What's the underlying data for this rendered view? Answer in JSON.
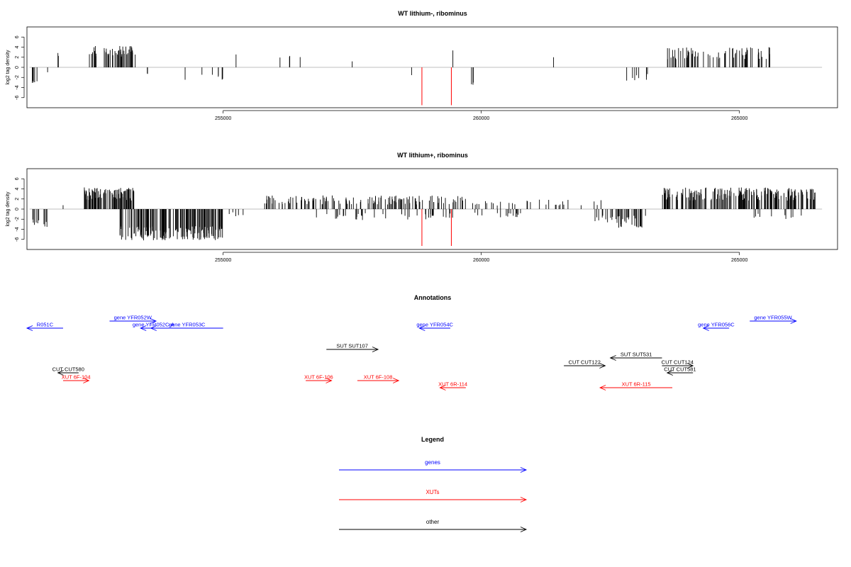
{
  "chart_data": {
    "type": "genome_track",
    "palette": {
      "genes": "#0000ff",
      "XUTs": "#ff0000",
      "other": "#000000",
      "baseline": "#aaaaaa",
      "highlight": "#ff0000"
    },
    "xlim": [
      251200,
      266900
    ],
    "ylim": [
      -8,
      8
    ],
    "panels": [
      {
        "title": "WT lithium-, ribominus",
        "ylabel": "log2 tag density",
        "yticks": [
          -6,
          -4,
          -2,
          0,
          2,
          4,
          6
        ],
        "xticks": [
          255000,
          260000,
          265000
        ],
        "xtick_labels": [
          "255000",
          "260000",
          "265000"
        ],
        "highlight_lines": [
          {
            "x": 258850,
            "y": -7.5
          },
          {
            "x": 259420,
            "y": -7.5
          }
        ],
        "pos_clusters": [
          {
            "x0": 251800,
            "x1": 251830,
            "mean": 2.5,
            "var": 0.4,
            "n": 2
          },
          {
            "x0": 252400,
            "x1": 253300,
            "mean": 3.2,
            "var": 1.2,
            "n": 50
          },
          {
            "x0": 255250,
            "x1": 255260,
            "mean": 2.8,
            "var": 0.3,
            "n": 1
          },
          {
            "x0": 256100,
            "x1": 256900,
            "mean": 1.8,
            "var": 0.6,
            "n": 5
          },
          {
            "x0": 257500,
            "x1": 257520,
            "mean": 1.1,
            "var": 0.1,
            "n": 1
          },
          {
            "x0": 259450,
            "x1": 259470,
            "mean": 3.5,
            "var": 0.2,
            "n": 1
          },
          {
            "x0": 261400,
            "x1": 261420,
            "mean": 2.0,
            "var": 0.1,
            "n": 1
          },
          {
            "x0": 263600,
            "x1": 265600,
            "mean": 2.8,
            "var": 1.2,
            "n": 70
          }
        ],
        "neg_clusters": [
          {
            "x0": 251250,
            "x1": 251400,
            "mean": -3.0,
            "var": 0.4,
            "n": 5
          },
          {
            "x0": 251600,
            "x1": 251650,
            "mean": -1.0,
            "var": 0.2,
            "n": 1
          },
          {
            "x0": 253500,
            "x1": 253550,
            "mean": -1.5,
            "var": 0.6,
            "n": 2
          },
          {
            "x0": 254200,
            "x1": 255000,
            "mean": -2.2,
            "var": 0.8,
            "n": 7
          },
          {
            "x0": 258650,
            "x1": 258660,
            "mean": -1.6,
            "var": 0.1,
            "n": 1
          },
          {
            "x0": 259800,
            "x1": 259850,
            "mean": -3.2,
            "var": 0.3,
            "n": 3
          },
          {
            "x0": 262500,
            "x1": 263300,
            "mean": -2.0,
            "var": 1.0,
            "n": 8
          }
        ]
      },
      {
        "title": "WT lithium+, ribominus",
        "ylabel": "log2 tag density",
        "yticks": [
          -6,
          -4,
          -2,
          0,
          2,
          4,
          6
        ],
        "xticks": [
          255000,
          260000,
          265000
        ],
        "xtick_labels": [
          "255000",
          "260000",
          "265000"
        ],
        "highlight_lines": [
          {
            "x": 258850,
            "y": -7.3
          },
          {
            "x": 259420,
            "y": -7.3
          }
        ],
        "pos_clusters": [
          {
            "x0": 251900,
            "x1": 251920,
            "mean": 0.8,
            "var": 0.1,
            "n": 1
          },
          {
            "x0": 252300,
            "x1": 253300,
            "mean": 3.0,
            "var": 1.3,
            "n": 90
          },
          {
            "x0": 255800,
            "x1": 259700,
            "mean": 1.8,
            "var": 0.9,
            "n": 140
          },
          {
            "x0": 259800,
            "x1": 262400,
            "mean": 1.3,
            "var": 0.6,
            "n": 30
          },
          {
            "x0": 263500,
            "x1": 266500,
            "mean": 3.0,
            "var": 1.3,
            "n": 200
          }
        ],
        "neg_clusters": [
          {
            "x0": 251250,
            "x1": 251600,
            "mean": -2.8,
            "var": 0.9,
            "n": 10
          },
          {
            "x0": 253000,
            "x1": 255000,
            "mean": -4.8,
            "var": 1.4,
            "n": 150
          },
          {
            "x0": 255100,
            "x1": 255500,
            "mean": -1.0,
            "var": 0.4,
            "n": 5
          },
          {
            "x0": 256700,
            "x1": 259500,
            "mean": -1.5,
            "var": 0.8,
            "n": 40
          },
          {
            "x0": 259800,
            "x1": 260800,
            "mean": -1.2,
            "var": 0.5,
            "n": 15
          },
          {
            "x0": 262200,
            "x1": 263200,
            "mean": -2.5,
            "var": 1.2,
            "n": 40
          },
          {
            "x0": 265200,
            "x1": 266300,
            "mean": -1.5,
            "var": 0.6,
            "n": 10
          }
        ]
      }
    ],
    "annotations": {
      "title": "Annotations",
      "features": [
        {
          "label": "R051C",
          "start": 251900,
          "end": 251200,
          "row": 0,
          "cat": "genes"
        },
        {
          "label": "gene YFR052W",
          "start": 252800,
          "end": 253700,
          "row": 1,
          "cat": "genes"
        },
        {
          "label": "gene YFR052C-A",
          "start": 253900,
          "end": 253400,
          "row": 0,
          "cat": "genes"
        },
        {
          "label": "gene YFR053C",
          "start": 255000,
          "end": 253600,
          "row": 0,
          "cat": "genes"
        },
        {
          "label": "gene YFR054C",
          "start": 259400,
          "end": 258800,
          "row": 0,
          "cat": "genes"
        },
        {
          "label": "gene YFR055W",
          "start": 265200,
          "end": 266100,
          "row": 1,
          "cat": "genes"
        },
        {
          "label": "gene YFR056C",
          "start": 264800,
          "end": 264300,
          "row": 0,
          "cat": "genes"
        },
        {
          "label": "SUT SUT107",
          "start": 257000,
          "end": 258000,
          "row": 3,
          "cat": "other"
        },
        {
          "label": "SUT SUT531",
          "start": 263500,
          "end": 262500,
          "row": 4,
          "cat": "other"
        },
        {
          "label": "CUT CUT122",
          "start": 261600,
          "end": 262400,
          "row": 5,
          "cat": "other"
        },
        {
          "label": "CUT CUT124",
          "start": 263500,
          "end": 264100,
          "row": 5,
          "cat": "other"
        },
        {
          "label": "CUT CUT580",
          "start": 252200,
          "end": 251800,
          "row": 6,
          "cat": "other"
        },
        {
          "label": "CUT CUT581",
          "start": 264100,
          "end": 263600,
          "row": 6,
          "cat": "other"
        },
        {
          "label": "XUT 6F-104",
          "start": 251900,
          "end": 252400,
          "row": 7,
          "cat": "XUTs"
        },
        {
          "label": "XUT 6F-106",
          "start": 256600,
          "end": 257100,
          "row": 7,
          "cat": "XUTs"
        },
        {
          "label": "XUT 6F-108",
          "start": 257600,
          "end": 258400,
          "row": 7,
          "cat": "XUTs"
        },
        {
          "label": "XUT 6R-114",
          "start": 259700,
          "end": 259200,
          "row": 8,
          "cat": "XUTs"
        },
        {
          "label": "XUT 6R-115",
          "start": 263700,
          "end": 262300,
          "row": 8,
          "cat": "XUTs"
        }
      ]
    },
    "legend": {
      "title": "Legend",
      "items": [
        {
          "label": "genes",
          "cat": "genes"
        },
        {
          "label": "XUTs",
          "cat": "XUTs"
        },
        {
          "label": "other",
          "cat": "other"
        }
      ]
    }
  }
}
